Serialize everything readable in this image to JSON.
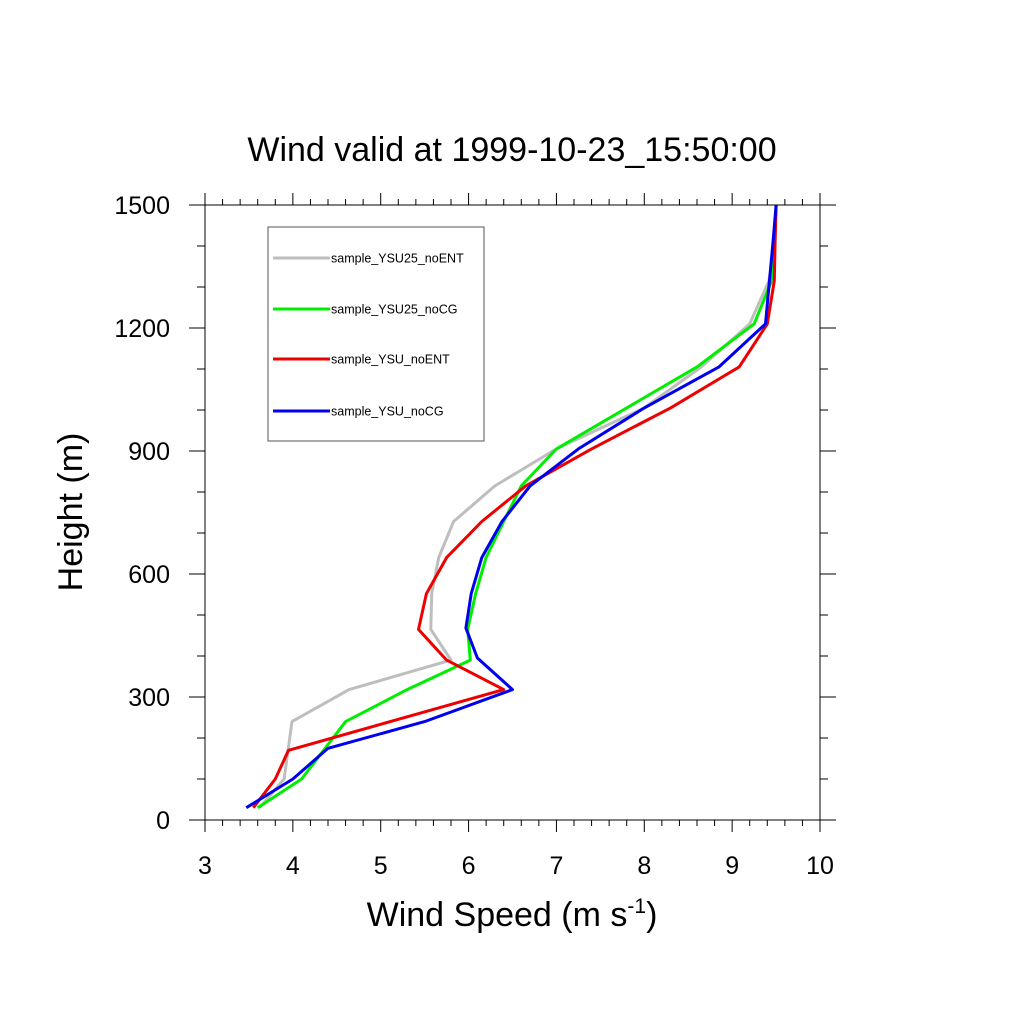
{
  "chart_data": {
    "type": "line",
    "title": "Wind valid at 1999-10-23_15:50:00",
    "xlabel": "Wind Speed (m s",
    "xlabel_superscript": "-1",
    "xlabel_suffix": ")",
    "ylabel": "Height (m)",
    "xlim": [
      3,
      10
    ],
    "ylim": [
      0,
      1500
    ],
    "xticks": [
      "3",
      "4",
      "5",
      "6",
      "7",
      "8",
      "9",
      "10"
    ],
    "yticks": [
      "0",
      "300",
      "600",
      "900",
      "1200",
      "1500"
    ],
    "grid": false,
    "legend_position": "top-left inside",
    "series": [
      {
        "name": "sample_YSU25_noENT",
        "color": "#bebebe",
        "x": [
          3.62,
          3.9,
          3.99,
          4.64,
          5.8,
          5.57,
          5.58,
          5.66,
          5.83,
          6.3,
          7.0,
          8.0,
          8.65,
          9.2,
          9.42,
          9.49,
          9.5
        ],
        "y": [
          30,
          100,
          240,
          318,
          390,
          465,
          552,
          640,
          728,
          815,
          905,
          1005,
          1105,
          1210,
          1315,
          1420,
          1500
        ]
      },
      {
        "name": "sample_YSU25_noCG",
        "color": "#00ee00",
        "x": [
          3.6,
          4.1,
          4.6,
          5.3,
          6.02,
          5.99,
          6.08,
          6.2,
          6.4,
          6.6,
          7.0,
          7.8,
          8.6,
          9.25,
          9.45,
          9.48,
          9.5
        ],
        "y": [
          30,
          100,
          240,
          318,
          390,
          465,
          552,
          640,
          728,
          815,
          905,
          1005,
          1105,
          1210,
          1315,
          1420,
          1500
        ]
      },
      {
        "name": "sample_YSU_noENT",
        "color": "#ee0000",
        "x": [
          3.55,
          3.8,
          3.95,
          6.4,
          5.75,
          5.43,
          5.52,
          5.75,
          6.15,
          6.65,
          7.4,
          8.3,
          9.08,
          9.4,
          9.48,
          9.49,
          9.5
        ],
        "y": [
          30,
          100,
          170,
          318,
          390,
          465,
          552,
          640,
          728,
          815,
          905,
          1005,
          1105,
          1210,
          1315,
          1420,
          1500
        ]
      },
      {
        "name": "sample_YSU_noCG",
        "color": "#0000ee",
        "x": [
          3.47,
          4.0,
          4.4,
          5.5,
          6.5,
          6.1,
          5.97,
          6.03,
          6.15,
          6.38,
          6.7,
          7.25,
          8.0,
          8.85,
          9.38,
          9.47,
          9.5
        ],
        "y": [
          30,
          100,
          175,
          240,
          318,
          395,
          468,
          552,
          640,
          728,
          815,
          905,
          1005,
          1105,
          1210,
          1420,
          1500
        ]
      }
    ]
  }
}
